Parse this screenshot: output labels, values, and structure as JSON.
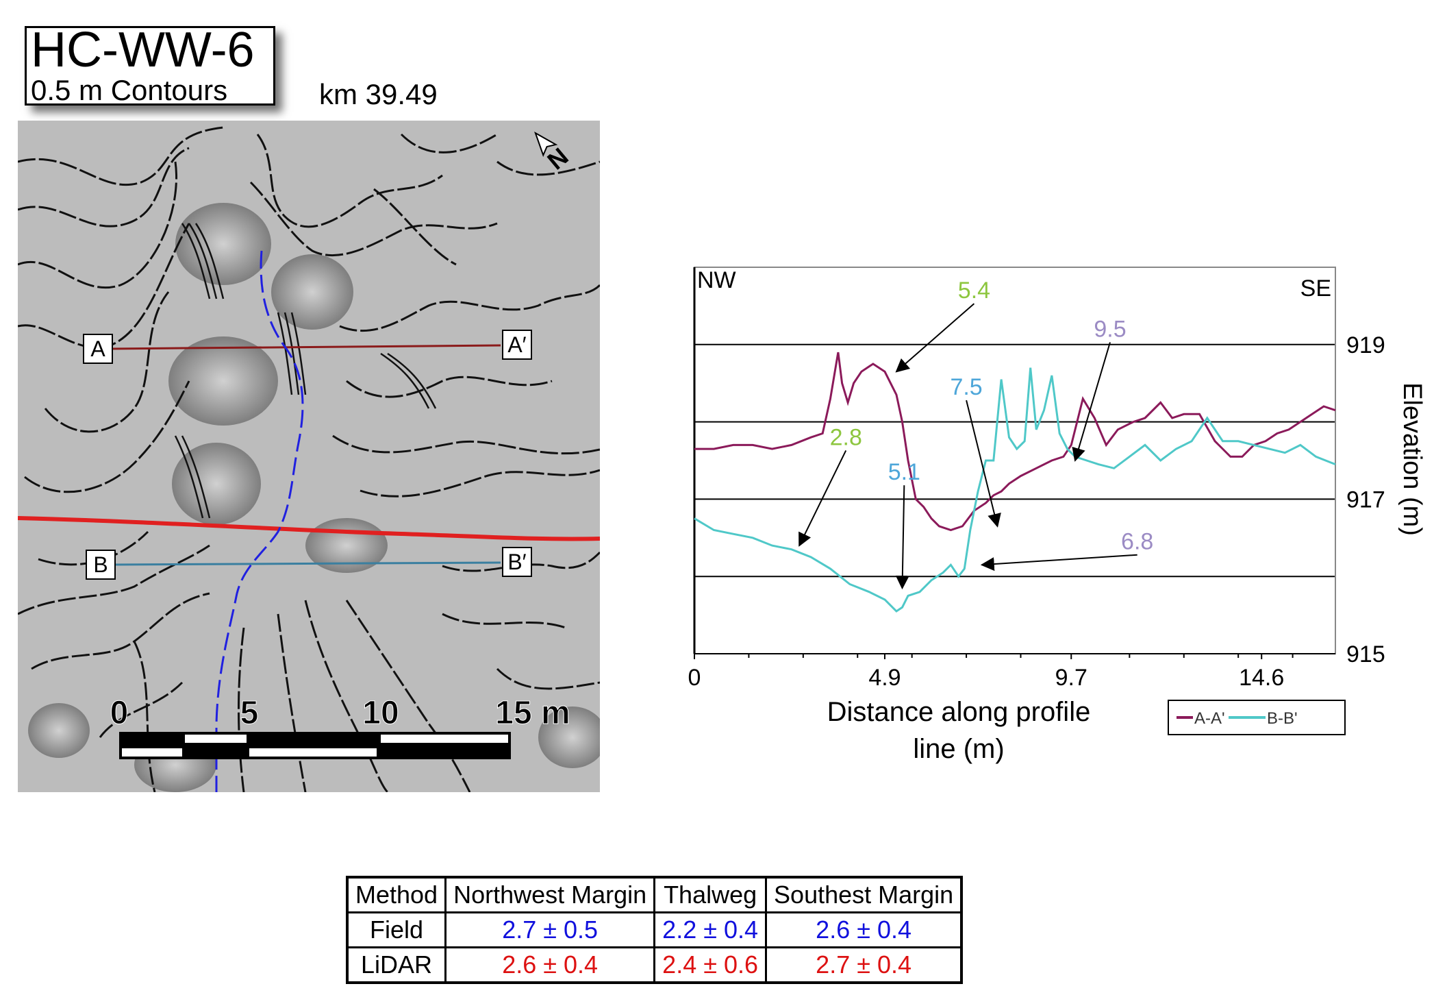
{
  "title": "HC-WW-6",
  "subtitle": "0.5 m Contours",
  "location": "km 39.49",
  "map": {
    "profile_labels": {
      "a": "A",
      "a_prime": "A′",
      "b": "B",
      "b_prime": "B′"
    },
    "scale_labels": [
      "0",
      "5",
      "10",
      "15 m"
    ],
    "north_icon": "north-arrow-icon",
    "colors": {
      "profile_a": "#8b1a1a",
      "profile_b": "#3a7fa0",
      "fault_line": "#e02020",
      "channel_line": "#2020e0"
    }
  },
  "chart_data": {
    "type": "line",
    "xlabel": "Distance along profile line (m)",
    "ylabel": "Elevation (m)",
    "xlim": [
      0,
      16.5
    ],
    "ylim": [
      915,
      920
    ],
    "xticks": [
      0,
      4.9,
      9.7,
      14.6
    ],
    "xtick_labels": [
      "0",
      "4.9",
      "9.7",
      "14.6"
    ],
    "yticks": [
      915,
      917,
      919
    ],
    "ytick_labels": [
      "915",
      "917",
      "919"
    ],
    "grid_y": [
      916,
      917,
      918,
      919
    ],
    "corner_labels": {
      "left": "NW",
      "right": "SE"
    },
    "legend": {
      "position": "bottom-right",
      "entries": [
        "A-A'",
        "B-B'"
      ]
    },
    "series": [
      {
        "name": "A-A'",
        "color": "#8b1a5a",
        "x": [
          0,
          0.5,
          1.0,
          1.5,
          2.0,
          2.5,
          3.0,
          3.3,
          3.5,
          3.7,
          3.8,
          3.95,
          4.1,
          4.3,
          4.6,
          4.9,
          5.2,
          5.35,
          5.5,
          5.7,
          5.9,
          6.1,
          6.3,
          6.6,
          6.9,
          7.2,
          7.5,
          7.7,
          7.9,
          8.1,
          8.4,
          8.8,
          9.2,
          9.5,
          9.7,
          10.0,
          10.3,
          10.6,
          10.9,
          11.3,
          11.6,
          12.0,
          12.3,
          12.6,
          13.0,
          13.4,
          13.8,
          14.1,
          14.4,
          14.7,
          15.0,
          15.3,
          15.6,
          15.9,
          16.2,
          16.5
        ],
        "y": [
          917.65,
          917.65,
          917.7,
          917.7,
          917.65,
          917.7,
          917.8,
          917.85,
          918.3,
          918.9,
          918.5,
          918.25,
          918.5,
          918.65,
          918.75,
          918.65,
          918.35,
          918.0,
          917.5,
          917.0,
          916.9,
          916.75,
          916.65,
          916.6,
          916.65,
          916.85,
          916.95,
          917.05,
          917.1,
          917.2,
          917.3,
          917.4,
          917.5,
          917.55,
          917.7,
          918.3,
          918.05,
          917.7,
          917.9,
          918.0,
          918.05,
          918.25,
          918.05,
          918.1,
          918.1,
          917.75,
          917.55,
          917.55,
          917.7,
          917.75,
          917.85,
          917.9,
          918.0,
          918.1,
          918.2,
          918.15
        ]
      },
      {
        "name": "B-B'",
        "color": "#4fc8c8",
        "x": [
          0,
          0.5,
          1.0,
          1.5,
          2.0,
          2.5,
          3.0,
          3.5,
          4.0,
          4.5,
          4.9,
          5.2,
          5.35,
          5.5,
          5.8,
          6.1,
          6.4,
          6.6,
          6.8,
          6.95,
          7.1,
          7.3,
          7.5,
          7.7,
          7.9,
          8.1,
          8.3,
          8.5,
          8.65,
          8.8,
          9.0,
          9.2,
          9.4,
          9.6,
          9.8,
          10.1,
          10.4,
          10.8,
          11.2,
          11.6,
          12.0,
          12.4,
          12.8,
          13.2,
          13.6,
          14.0,
          14.4,
          14.8,
          15.2,
          15.6,
          16.0,
          16.5
        ],
        "y": [
          916.75,
          916.6,
          916.55,
          916.5,
          916.4,
          916.35,
          916.25,
          916.1,
          915.9,
          915.8,
          915.7,
          915.55,
          915.6,
          915.75,
          915.8,
          915.95,
          916.05,
          916.15,
          916.0,
          916.1,
          916.6,
          917.1,
          917.5,
          917.5,
          918.55,
          917.8,
          917.65,
          917.75,
          918.7,
          917.9,
          918.15,
          918.6,
          917.85,
          917.65,
          917.55,
          917.5,
          917.45,
          917.4,
          917.55,
          917.7,
          917.5,
          917.65,
          917.75,
          918.05,
          917.75,
          917.75,
          917.7,
          917.65,
          917.6,
          917.7,
          917.55,
          917.45
        ]
      }
    ],
    "annotations": [
      {
        "text": "5.4",
        "color": "#8dc63f",
        "x": 7.2,
        "y": 919.6,
        "target_x": 5.2,
        "target_y": 918.65
      },
      {
        "text": "9.5",
        "color": "#9b8bc4",
        "x": 10.7,
        "y": 919.1,
        "target_x": 9.8,
        "target_y": 917.5
      },
      {
        "text": "7.5",
        "color": "#4da6d9",
        "x": 7.0,
        "y": 918.35,
        "target_x": 7.8,
        "target_y": 916.65
      },
      {
        "text": "2.8",
        "color": "#8dc63f",
        "x": 3.9,
        "y": 917.7,
        "target_x": 2.7,
        "target_y": 916.4
      },
      {
        "text": "5.1",
        "color": "#4da6d9",
        "x": 5.4,
        "y": 917.25,
        "target_x": 5.35,
        "target_y": 915.85
      },
      {
        "text": "6.8",
        "color": "#9b8bc4",
        "x": 11.4,
        "y": 916.35,
        "target_x": 7.4,
        "target_y": 916.15
      }
    ]
  },
  "table": {
    "headers": [
      "Method",
      "Northwest Margin",
      "Thalweg",
      "Southest Margin"
    ],
    "rows": [
      {
        "method": "Field",
        "values": [
          "2.7 ± 0.5",
          "2.2 ± 0.4",
          "2.6 ± 0.4"
        ]
      },
      {
        "method": "LiDAR",
        "values": [
          "2.6 ± 0.4",
          "2.4 ± 0.6",
          "2.7 ± 0.4"
        ]
      }
    ],
    "colors": {
      "field": "#1010dd",
      "lidar": "#dd1111"
    }
  }
}
